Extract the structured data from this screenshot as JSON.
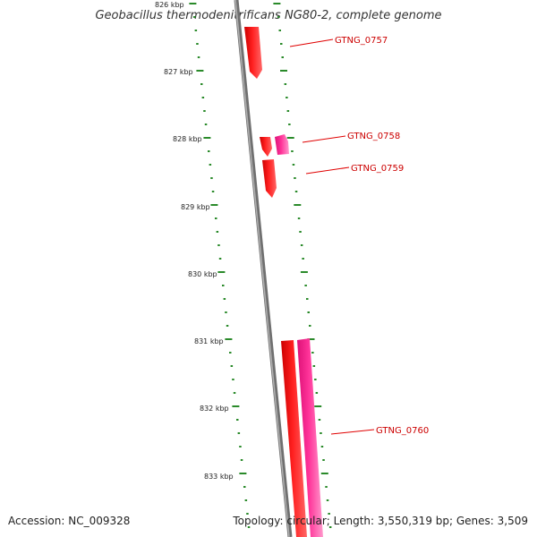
{
  "title": "Geobacillus thermodenitrificans NG80-2, complete genome",
  "footer": {
    "accession": "Accession: NC_009328",
    "summary": "Topology: circular; Length: 3,550,319 bp; Genes: 3,509"
  },
  "colors": {
    "backbone": "#888888",
    "tick": "#2a8a2a",
    "gene_forward": "#ff0000",
    "gene_reverse": "#ff3399",
    "label_line": "#e00000",
    "label_text": "#cc0000"
  },
  "scale_labels": [
    "826 kbp",
    "827 kbp",
    "828 kbp",
    "829 kbp",
    "830 kbp",
    "831 kbp",
    "832 kbp",
    "833 kbp"
  ],
  "genes": [
    {
      "label": "GTNG_0757",
      "strand": "forward",
      "start_kbp": 826.35,
      "end_kbp": 827.1
    },
    {
      "label": "GTNG_0758",
      "strand": "forward",
      "start_kbp": 828.0,
      "end_kbp": 828.25
    },
    {
      "label": "GTNG_0758",
      "strand": "reverse",
      "start_kbp": 828.0,
      "end_kbp": 828.25
    },
    {
      "label": "GTNG_0759",
      "strand": "forward",
      "start_kbp": 828.3,
      "end_kbp": 828.9
    },
    {
      "label": "GTNG_0760",
      "strand": "forward",
      "start_kbp": 831.0,
      "end_kbp": 833.8
    },
    {
      "label": "GTNG_0760",
      "strand": "reverse",
      "start_kbp": 831.0,
      "end_kbp": 833.8
    }
  ],
  "callouts": [
    "GTNG_0757",
    "GTNG_0758",
    "GTNG_0759",
    "GTNG_0760"
  ]
}
